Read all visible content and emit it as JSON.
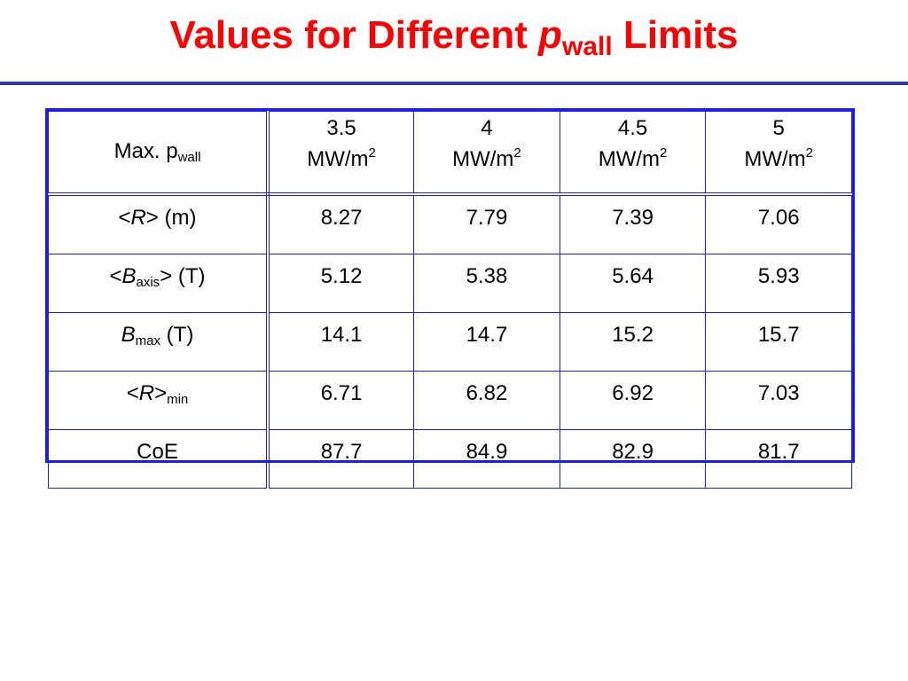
{
  "title": {
    "prefix": "Values for Different ",
    "italic_symbol": "p",
    "subscript": "wall",
    "suffix": " Limits"
  },
  "table": {
    "header": {
      "label_main": "Max. p",
      "label_sub": "wall",
      "columns": [
        {
          "value": "3.5",
          "unit": "MW/m",
          "exp": "2"
        },
        {
          "value": "4",
          "unit": "MW/m",
          "exp": "2"
        },
        {
          "value": "4.5",
          "unit": "MW/m",
          "exp": "2"
        },
        {
          "value": "5",
          "unit": "MW/m",
          "exp": "2"
        }
      ]
    },
    "rows": [
      {
        "label": {
          "open": "<",
          "symbol": "R",
          "sub": "",
          "close": ">",
          "unit": " (m)"
        },
        "values": [
          "8.27",
          "7.79",
          "7.39",
          "7.06"
        ]
      },
      {
        "label": {
          "open": "<",
          "symbol": "B",
          "sub": "axis",
          "close": ">",
          "unit": " (T)"
        },
        "values": [
          "5.12",
          "5.38",
          "5.64",
          "5.93"
        ]
      },
      {
        "label": {
          "open": "",
          "symbol": "B",
          "sub": "max",
          "close": "",
          "unit": " (T)"
        },
        "values": [
          "14.1",
          "14.7",
          "15.2",
          "15.7"
        ]
      },
      {
        "label": {
          "open": "<",
          "symbol": "R",
          "close": ">",
          "sub_after": "min"
        },
        "values": [
          "6.71",
          "6.82",
          "6.92",
          "7.03"
        ]
      },
      {
        "label": {
          "text": "CoE"
        },
        "values": [
          "87.7",
          "84.9",
          "82.9",
          "81.7"
        ]
      }
    ]
  },
  "colors": {
    "title": "#ff0000",
    "rule": "#3333aa",
    "table_border": "#1a1aff"
  }
}
